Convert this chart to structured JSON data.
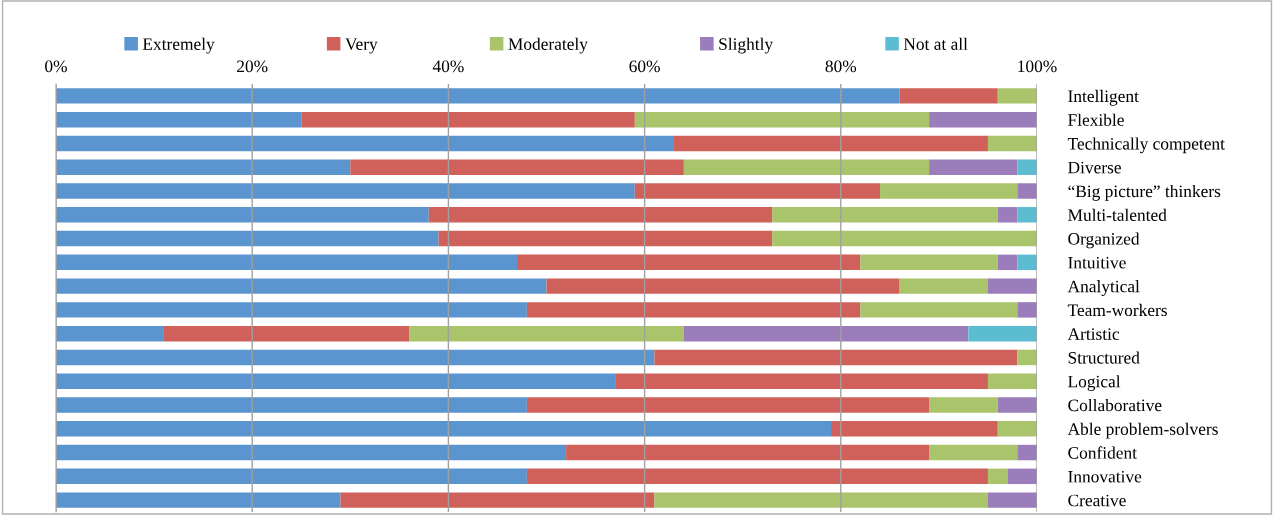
{
  "chart_data": {
    "type": "bar",
    "orientation": "horizontal",
    "stacked": true,
    "categories": [
      "Intelligent",
      "Flexible",
      "Technically competent",
      "Diverse",
      "“Big picture” thinkers",
      "Multi-talented",
      "Organized",
      "Intuitive",
      "Analytical",
      "Team-workers",
      "Artistic",
      "Structured",
      "Logical",
      "Collaborative",
      "Able problem-solvers",
      "Confident",
      "Innovative",
      "Creative"
    ],
    "series": [
      {
        "name": "Extremely",
        "color": "#5b95cf",
        "values": [
          86,
          25,
          63,
          30,
          59,
          38,
          39,
          47,
          50,
          48,
          11,
          61,
          57,
          48,
          79,
          52,
          48,
          29
        ]
      },
      {
        "name": "Very",
        "color": "#d0605a",
        "values": [
          10,
          34,
          32,
          34,
          25,
          35,
          34,
          35,
          36,
          34,
          25,
          37,
          38,
          41,
          17,
          37,
          47,
          32
        ]
      },
      {
        "name": "Moderately",
        "color": "#a9c46a",
        "values": [
          4,
          30,
          5,
          25,
          14,
          23,
          27,
          14,
          9,
          16,
          28,
          2,
          5,
          7,
          4,
          9,
          2,
          34
        ]
      },
      {
        "name": "Slightly",
        "color": "#9a7dba",
        "values": [
          0,
          11,
          0,
          9,
          2,
          2,
          0,
          2,
          5,
          2,
          29,
          0,
          0,
          4,
          0,
          2,
          3,
          5
        ]
      },
      {
        "name": "Not at all",
        "color": "#5bbcd2",
        "values": [
          0,
          0,
          0,
          2,
          0,
          2,
          0,
          2,
          0,
          0,
          7,
          0,
          0,
          0,
          0,
          0,
          0,
          0
        ]
      }
    ],
    "xlim": [
      0,
      100
    ],
    "xticks": [
      {
        "value": 0,
        "label": "0%"
      },
      {
        "value": 20,
        "label": "20%"
      },
      {
        "value": 40,
        "label": "40%"
      },
      {
        "value": 60,
        "label": "60%"
      },
      {
        "value": 80,
        "label": "80%"
      },
      {
        "value": 100,
        "label": "100%"
      }
    ],
    "grid": "x",
    "legend": "top"
  }
}
